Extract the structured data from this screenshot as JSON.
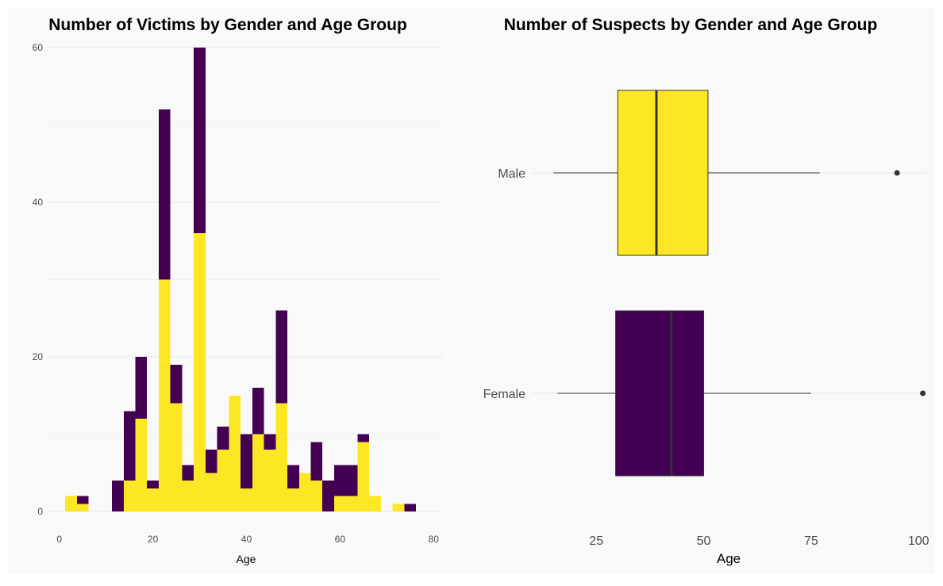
{
  "colors": {
    "panel_background": "#f9f9f9",
    "gridline": "#e8e8e8",
    "male": "#fde725",
    "female": "#440154",
    "box_outline": "#333333"
  },
  "chart_data": [
    {
      "type": "bar",
      "stacked": true,
      "title": "Number of Victims by Gender and Age Group",
      "xlabel": "Age",
      "ylabel": "",
      "xlim": [
        -2.5,
        82
      ],
      "ylim": [
        0,
        60
      ],
      "x_ticks": [
        "0",
        "20",
        "40",
        "60",
        "80"
      ],
      "y_ticks": [
        "0",
        "20",
        "40",
        "60"
      ],
      "grid": true,
      "bin_width": 2.5,
      "bin_centers": [
        2.5,
        5,
        7.5,
        10,
        12.5,
        15,
        17.5,
        20,
        22.5,
        25,
        27.5,
        30,
        32.5,
        35,
        37.5,
        40,
        42.5,
        45,
        47.5,
        50,
        52.5,
        55,
        57.5,
        60,
        62.5,
        65,
        67.5,
        70,
        72.5,
        75,
        77.5
      ],
      "series": [
        {
          "color": "#fde725",
          "values": [
            2,
            1,
            0,
            0,
            0,
            4,
            12,
            3,
            30,
            14,
            4,
            36,
            5,
            8,
            15,
            3,
            10,
            8,
            14,
            3,
            5,
            4,
            0,
            2,
            2,
            9,
            2,
            0,
            1,
            0,
            0
          ]
        },
        {
          "color": "#440154",
          "values": [
            0,
            1,
            0,
            0,
            4,
            9,
            8,
            1,
            22,
            5,
            2,
            24,
            3,
            3,
            0,
            7,
            6,
            2,
            12,
            3,
            0,
            5,
            4,
            4,
            4,
            1,
            0,
            0,
            0,
            1,
            0
          ]
        }
      ]
    },
    {
      "type": "boxplot",
      "title": "Number of Suspects by Gender and Age Group",
      "xlabel": "Age",
      "ylabel": "",
      "xlim": [
        10,
        102
      ],
      "x_ticks": [
        "25",
        "50",
        "75",
        "100"
      ],
      "grid": true,
      "groups": [
        {
          "label": "Male",
          "color": "#fde725",
          "whisker_low": 15,
          "q1": 30,
          "median": 39,
          "q3": 51,
          "whisker_high": 77,
          "outliers": [
            95
          ]
        },
        {
          "label": "Female",
          "color": "#440154",
          "whisker_low": 16,
          "q1": 29.5,
          "median": 42.5,
          "q3": 50,
          "whisker_high": 75,
          "outliers": [
            101
          ]
        }
      ]
    }
  ]
}
